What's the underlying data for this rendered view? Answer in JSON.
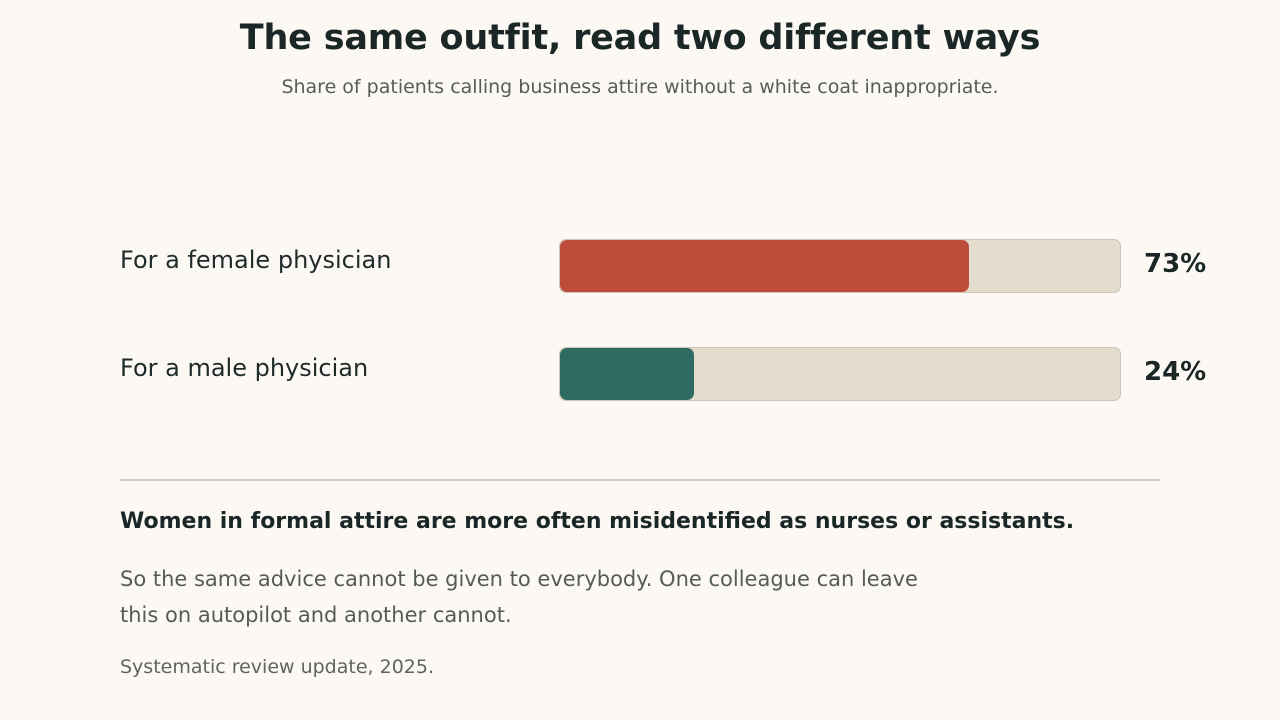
{
  "header": {
    "title": "The same outfit, read two different ways",
    "subtitle": "Share of patients calling business attire without a white coat inappropriate."
  },
  "chart_data": {
    "type": "bar",
    "orientation": "horizontal",
    "categories": [
      "For a female physician",
      "For a male physician"
    ],
    "values": [
      73,
      24
    ],
    "value_labels": [
      "73%",
      "24%"
    ],
    "colors": [
      "#bc4b3a",
      "#2f6b60"
    ],
    "track_color": "#e4dccd",
    "xlim": [
      0,
      100
    ],
    "grid": false,
    "legend": false
  },
  "note": {
    "takeaway": "Women in formal attire are more often misidentified as nurses or assistants.",
    "body_line1": "So the same advice cannot be given to everybody. One colleague can leave",
    "body_line2": "this on autopilot and another cannot.",
    "source": "Systematic review update, 2025."
  }
}
